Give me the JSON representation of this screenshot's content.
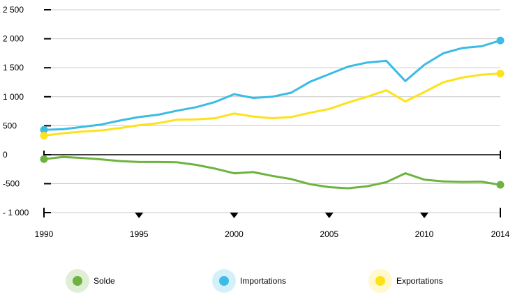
{
  "chart_data": {
    "type": "line",
    "title": "",
    "xlabel": "",
    "ylabel": "",
    "x": [
      1990,
      1991,
      1992,
      1993,
      1994,
      1995,
      1996,
      1997,
      1998,
      1999,
      2000,
      2001,
      2002,
      2003,
      2004,
      2005,
      2006,
      2007,
      2008,
      2009,
      2010,
      2011,
      2012,
      2013,
      2014
    ],
    "x_tick_labels": [
      "1990",
      "1995",
      "2000",
      "2005",
      "2010",
      "2014"
    ],
    "y_ticks": [
      2500,
      2000,
      1500,
      1000,
      500,
      0,
      -500,
      -1000
    ],
    "y_tick_labels": [
      "2 500",
      "2 000",
      "1 500",
      "1 000",
      "500",
      "0",
      "-500",
      "- 1 000"
    ],
    "ylim": [
      -1000,
      2500
    ],
    "grid": true,
    "legend_position": "bottom",
    "series": [
      {
        "name": "Solde",
        "color": "#6db33f",
        "values": [
          -75,
          -40,
          -55,
          -80,
          -110,
          -125,
          -125,
          -130,
          -175,
          -240,
          -320,
          -300,
          -365,
          -420,
          -510,
          -560,
          -580,
          -545,
          -475,
          -320,
          -430,
          -460,
          -470,
          -465,
          -520
        ]
      },
      {
        "name": "Importations",
        "color": "#3bbbe6",
        "values": [
          430,
          440,
          480,
          520,
          590,
          650,
          690,
          760,
          820,
          910,
          1045,
          980,
          1000,
          1070,
          1260,
          1390,
          1520,
          1590,
          1620,
          1270,
          1550,
          1750,
          1840,
          1870,
          1970
        ]
      },
      {
        "name": "Exportations",
        "color": "#fde21a",
        "values": [
          330,
          370,
          400,
          420,
          460,
          510,
          545,
          605,
          610,
          630,
          710,
          660,
          630,
          650,
          725,
          790,
          900,
          1000,
          1110,
          920,
          1080,
          1250,
          1330,
          1380,
          1400
        ]
      }
    ]
  }
}
